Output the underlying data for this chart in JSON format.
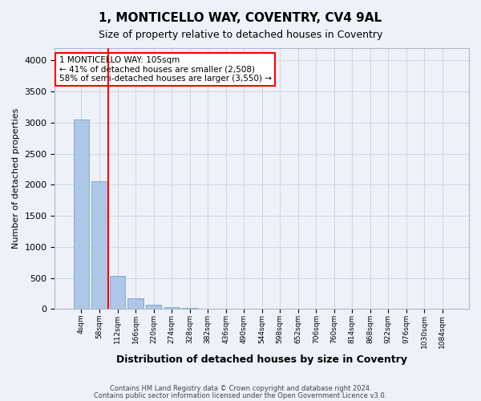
{
  "title1": "1, MONTICELLO WAY, COVENTRY, CV4 9AL",
  "title2": "Size of property relative to detached houses in Coventry",
  "xlabel": "Distribution of detached houses by size in Coventry",
  "ylabel": "Number of detached properties",
  "bin_labels": [
    "4sqm",
    "58sqm",
    "112sqm",
    "166sqm",
    "220sqm",
    "274sqm",
    "328sqm",
    "382sqm",
    "436sqm",
    "490sqm",
    "544sqm",
    "598sqm",
    "652sqm",
    "706sqm",
    "760sqm",
    "814sqm",
    "868sqm",
    "922sqm",
    "976sqm",
    "1030sqm",
    "1084sqm"
  ],
  "bar_values": [
    3050,
    2060,
    530,
    170,
    70,
    30,
    15,
    10,
    5,
    3,
    2,
    1,
    0,
    0,
    0,
    0,
    0,
    0,
    0,
    0,
    0
  ],
  "bar_color": "#aec6e8",
  "bar_edge_color": "#7aaed0",
  "annotation_text": "1 MONTICELLO WAY: 105sqm\n← 41% of detached houses are smaller (2,508)\n58% of semi-detached houses are larger (3,550) →",
  "grid_color": "#d0d8e8",
  "background_color": "#eef2f8",
  "footer1": "Contains HM Land Registry data © Crown copyright and database right 2024.",
  "footer2": "Contains public sector information licensed under the Open Government Licence v3.0.",
  "ylim": [
    0,
    4200
  ],
  "yticks": [
    0,
    500,
    1000,
    1500,
    2000,
    2500,
    3000,
    3500,
    4000
  ],
  "property_line_x": 1.5
}
